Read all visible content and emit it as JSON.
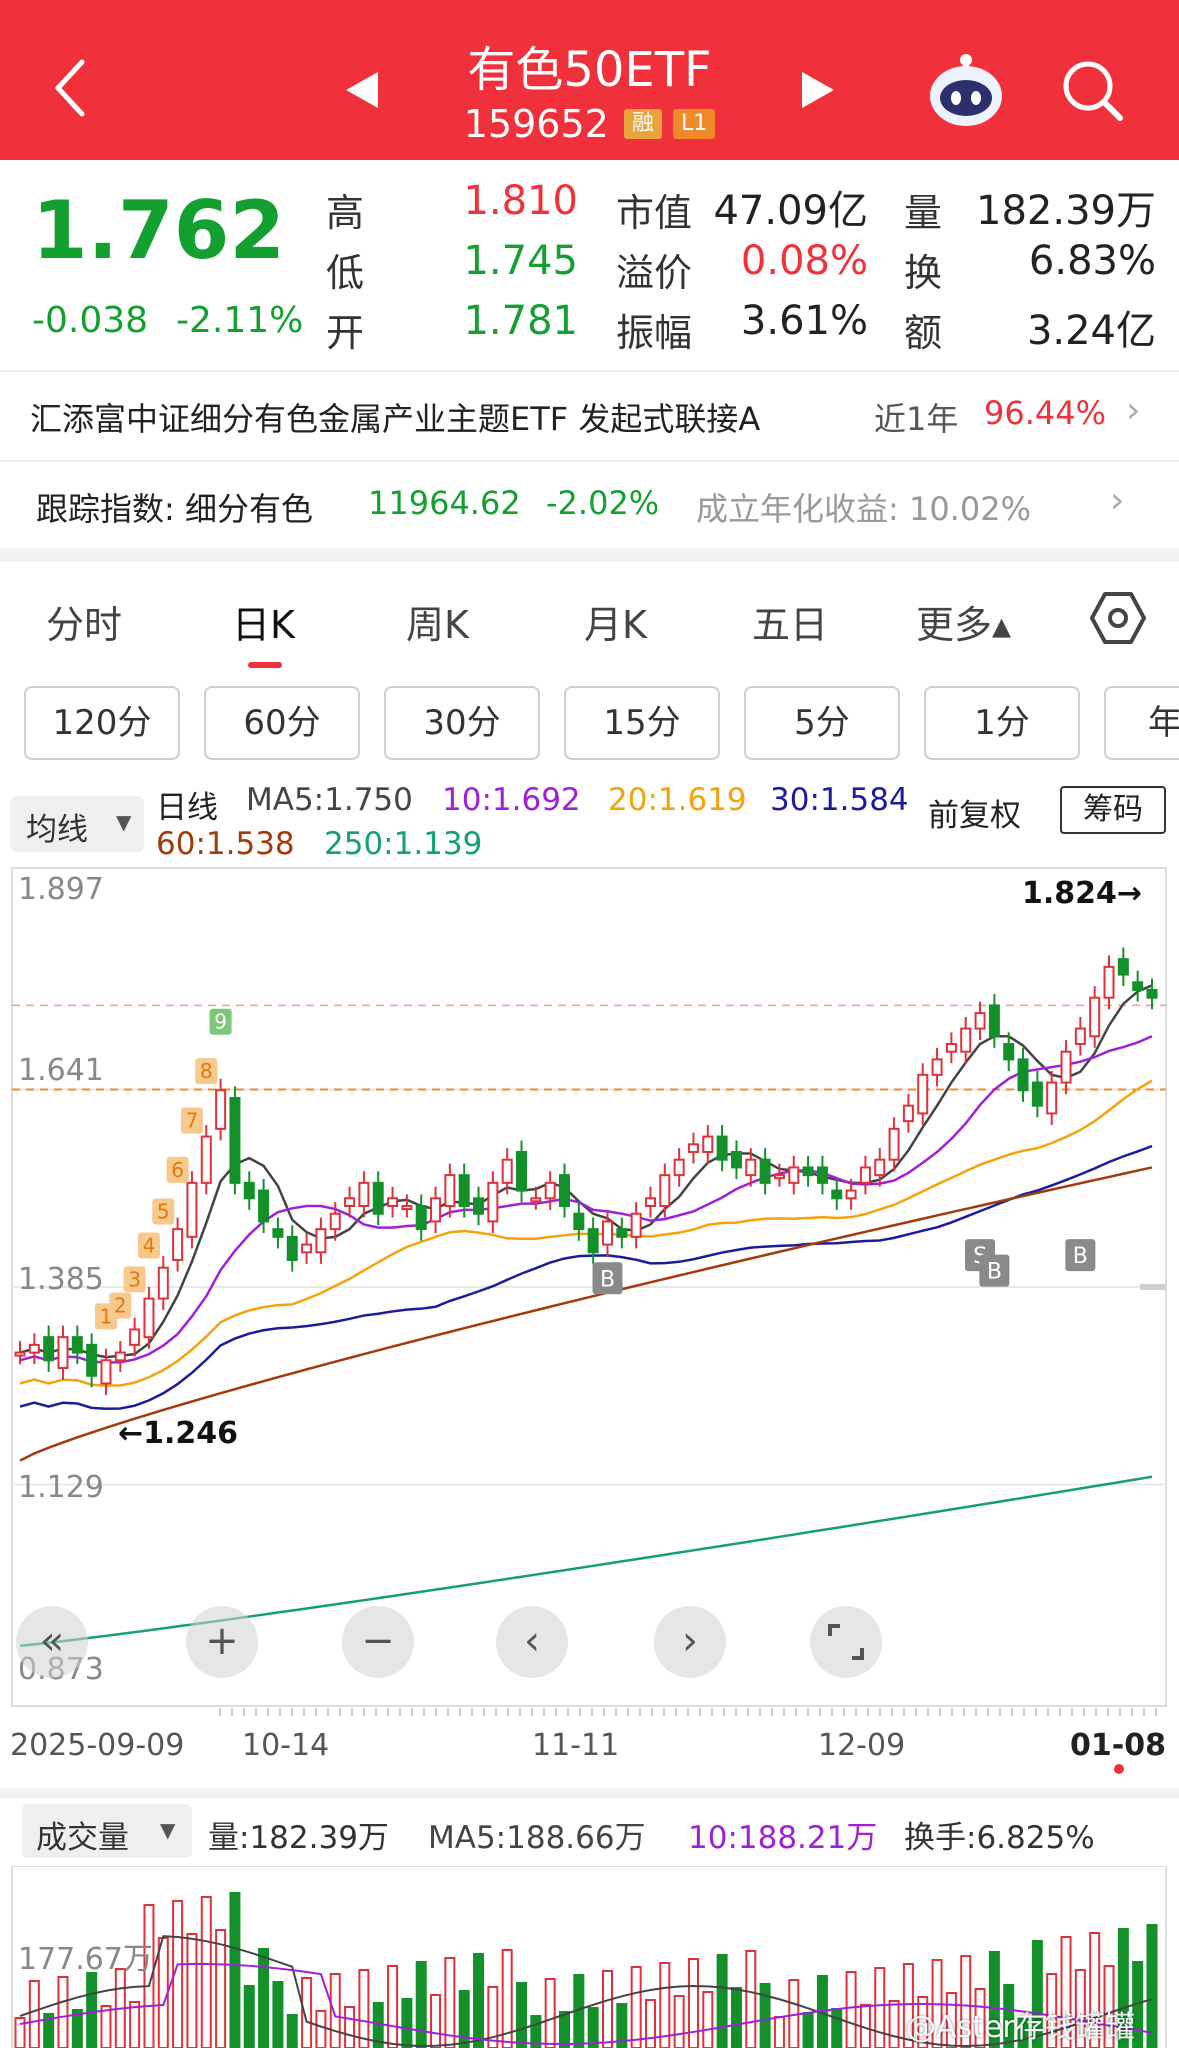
{
  "header": {
    "title": "有色50ETF",
    "code": "159652",
    "badge_margin": "融",
    "badge_level": "L1",
    "colors": {
      "bar": "#f0313b",
      "badge_margin": "#e8a33a",
      "badge_level": "#ef8a2a"
    }
  },
  "quote": {
    "price": "1.762",
    "change": "-0.038",
    "change_pct": "-2.11%",
    "rows": [
      [
        {
          "label": "高",
          "value": "1.810",
          "tone": "red"
        },
        {
          "label": "市值",
          "value": "47.09亿",
          "tone": "dark"
        },
        {
          "label": "量",
          "value": "182.39万",
          "tone": "dark"
        }
      ],
      [
        {
          "label": "低",
          "value": "1.745",
          "tone": "green"
        },
        {
          "label": "溢价",
          "value": "0.08%",
          "tone": "red"
        },
        {
          "label": "换",
          "value": "6.83%",
          "tone": "dark"
        }
      ],
      [
        {
          "label": "开",
          "value": "1.781",
          "tone": "green"
        },
        {
          "label": "振幅",
          "value": "3.61%",
          "tone": "dark"
        },
        {
          "label": "额",
          "value": "3.24亿",
          "tone": "dark"
        }
      ]
    ]
  },
  "fund": {
    "name": "汇添富中证细分有色金属产业主题ETF 发起式联接A",
    "period_label": "近1年",
    "period_return": "96.44%"
  },
  "tracking": {
    "label": "跟踪指数: 细分有色",
    "value": "11964.62",
    "change": "-2.02%",
    "annualized": "成立年化收益: 10.02%"
  },
  "tabs": {
    "items": [
      "分时",
      "日K",
      "周K",
      "月K",
      "五日",
      "更多▴"
    ],
    "active": "日K"
  },
  "minute_buttons": [
    "120分",
    "60分",
    "30分",
    "15分",
    "5分",
    "1分",
    "年"
  ],
  "ma_bar": {
    "dropdown": "均线",
    "period": "日线",
    "ma5": "MA5:1.750",
    "ma10": "10:1.692",
    "ma20": "20:1.619",
    "ma30": "30:1.584",
    "ma60": "60:1.538",
    "ma250": "250:1.139",
    "adjust": "前复权",
    "chips_button": "筹码",
    "colors": {
      "ma5": "#444444",
      "ma10": "#a020d8",
      "ma20": "#f5a20c",
      "ma30": "#1c1c9a",
      "ma60": "#a33a0c",
      "ma250": "#14a070"
    }
  },
  "chart_data": {
    "type": "candlestick",
    "y_ticks": [
      "1.897",
      "1.641",
      "1.385",
      "1.129",
      "0.873"
    ],
    "ylim": [
      0.873,
      1.897
    ],
    "x_ticks": [
      "2025-09-09",
      "10-14",
      "11-11",
      "12-09",
      "01-08"
    ],
    "max_label": "1.824→",
    "min_label": "←1.246",
    "signals": [
      "B",
      "S",
      "B",
      "B"
    ],
    "sequence_labels_start": [
      "1",
      "2",
      "3",
      "4",
      "5",
      "6",
      "7",
      "8",
      "9"
    ]
  },
  "volume": {
    "dropdown": "成交量",
    "vol": "量:182.39万",
    "ma5": "MA5:188.66万",
    "ma10": "10:188.21万",
    "turnover": "换手:6.825%",
    "y_label": "177.67万",
    "watermark": "@Aster存钱罐罐"
  }
}
